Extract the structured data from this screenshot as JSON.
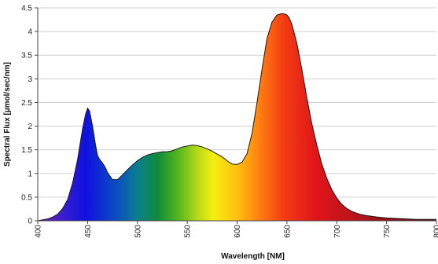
{
  "chart_data": {
    "type": "area",
    "title": "",
    "xlabel": "Wavelength [NM]",
    "ylabel": "Spectral Flux [µmol/sec/nm]",
    "xlim": [
      400,
      800
    ],
    "ylim": [
      0,
      4.5
    ],
    "x_ticks": [
      400,
      450,
      500,
      550,
      600,
      650,
      700,
      750,
      800
    ],
    "y_ticks": [
      0,
      0.5,
      1,
      1.5,
      2,
      2.5,
      3,
      3.5,
      4,
      4.5
    ],
    "grid": "horizontal",
    "legend": "none",
    "fill": "visible-spectrum-gradient",
    "series": [
      {
        "x": [
          400,
          405,
          410,
          415,
          420,
          425,
          430,
          435,
          440,
          445,
          448,
          450,
          452,
          455,
          458,
          460,
          462,
          465,
          468,
          470,
          475,
          480,
          485,
          490,
          495,
          500,
          505,
          510,
          515,
          520,
          525,
          530,
          535,
          540,
          545,
          550,
          555,
          560,
          565,
          570,
          575,
          580,
          585,
          590,
          595,
          600,
          605,
          610,
          615,
          620,
          625,
          630,
          635,
          640,
          645,
          648,
          650,
          652,
          655,
          660,
          665,
          670,
          675,
          680,
          685,
          690,
          695,
          700,
          705,
          710,
          715,
          720,
          725,
          730,
          740,
          750,
          760,
          770,
          780,
          790,
          800
        ],
        "y": [
          0.0,
          0.02,
          0.04,
          0.08,
          0.14,
          0.26,
          0.45,
          0.8,
          1.3,
          1.95,
          2.25,
          2.38,
          2.32,
          2.0,
          1.6,
          1.38,
          1.3,
          1.22,
          1.12,
          1.02,
          0.87,
          0.87,
          0.97,
          1.08,
          1.18,
          1.27,
          1.34,
          1.39,
          1.42,
          1.44,
          1.46,
          1.46,
          1.48,
          1.52,
          1.56,
          1.58,
          1.6,
          1.59,
          1.56,
          1.52,
          1.47,
          1.41,
          1.35,
          1.27,
          1.2,
          1.19,
          1.24,
          1.42,
          1.85,
          2.5,
          3.2,
          3.85,
          4.2,
          4.35,
          4.38,
          4.37,
          4.35,
          4.3,
          4.15,
          3.75,
          3.2,
          2.6,
          2.05,
          1.6,
          1.2,
          0.9,
          0.66,
          0.48,
          0.35,
          0.26,
          0.2,
          0.16,
          0.13,
          0.11,
          0.08,
          0.06,
          0.05,
          0.04,
          0.03,
          0.03,
          0.03
        ]
      }
    ]
  }
}
